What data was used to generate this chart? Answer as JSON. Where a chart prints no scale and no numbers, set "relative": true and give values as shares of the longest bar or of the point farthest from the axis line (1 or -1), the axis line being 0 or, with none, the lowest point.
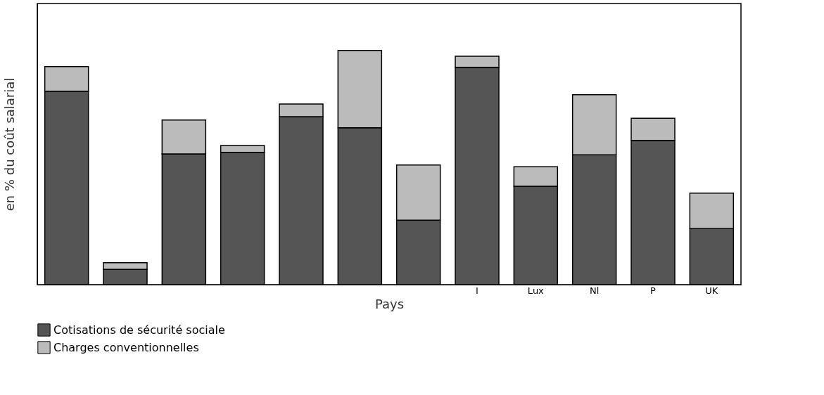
{
  "chart_data": {
    "type": "bar",
    "stacked": true,
    "relative": true,
    "xlabel": "Pays",
    "ylabel": "en % du coût salarial",
    "categories": [
      null,
      null,
      null,
      null,
      null,
      null,
      null,
      "I",
      "Lux",
      "Nl",
      "P",
      "UK"
    ],
    "series": [
      {
        "name": "Cotisations de sécurité sociale",
        "color": "#555555",
        "values": [
          0.826,
          0.065,
          0.558,
          0.565,
          0.717,
          0.67,
          0.275,
          0.928,
          0.42,
          0.554,
          0.616,
          0.239
        ]
      },
      {
        "name": "Charges conventionnelles",
        "color": "#bbbbbb",
        "values": [
          0.105,
          0.029,
          0.145,
          0.029,
          0.054,
          0.33,
          0.236,
          0.047,
          0.083,
          0.257,
          0.094,
          0.152
        ]
      }
    ],
    "legend": "bottom",
    "grid": false
  }
}
